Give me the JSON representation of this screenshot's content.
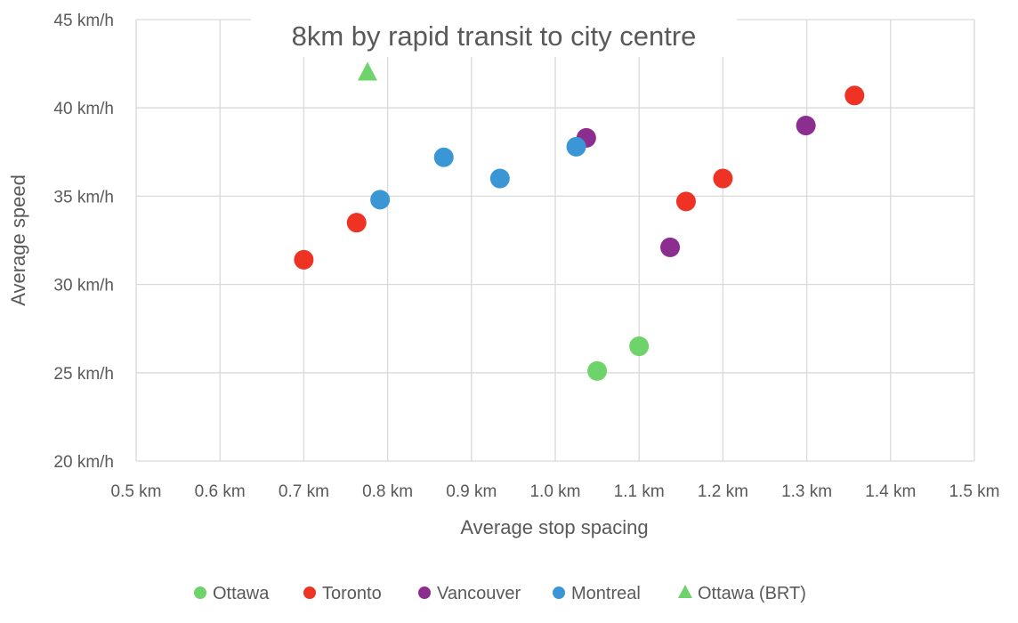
{
  "chart_data": {
    "type": "scatter",
    "title": "8km by rapid transit to city centre",
    "xlabel": "Average stop spacing",
    "ylabel": "Average speed",
    "xlim": [
      0.5,
      1.5
    ],
    "ylim": [
      20,
      45
    ],
    "x_ticks": [
      "0.5 km",
      "0.6 km",
      "0.7 km",
      "0.8 km",
      "0.9 km",
      "1.0 km",
      "1.1 km",
      "1.2 km",
      "1.3 km",
      "1.4 km",
      "1.5 km"
    ],
    "y_ticks": [
      "20 km/h",
      "25 km/h",
      "30 km/h",
      "35 km/h",
      "40 km/h",
      "45 km/h"
    ],
    "grid": true,
    "legend_position": "bottom",
    "series": [
      {
        "name": "Ottawa",
        "color": "#6dd36a",
        "marker": "circle",
        "points": [
          [
            1.05,
            25.1
          ],
          [
            1.1,
            26.5
          ]
        ]
      },
      {
        "name": "Toronto",
        "color": "#ee3224",
        "marker": "circle",
        "points": [
          [
            0.7,
            31.4
          ],
          [
            0.763,
            33.5
          ],
          [
            1.156,
            34.7
          ],
          [
            1.2,
            36.0
          ],
          [
            1.357,
            40.7
          ]
        ]
      },
      {
        "name": "Vancouver",
        "color": "#8b2e8f",
        "marker": "circle",
        "points": [
          [
            1.037,
            38.3
          ],
          [
            1.137,
            32.1
          ],
          [
            1.299,
            39.0
          ]
        ]
      },
      {
        "name": "Montreal",
        "color": "#3a96d4",
        "marker": "circle",
        "points": [
          [
            0.791,
            34.8
          ],
          [
            0.867,
            37.2
          ],
          [
            0.934,
            36.0
          ],
          [
            1.025,
            37.8
          ]
        ]
      },
      {
        "name": "Ottawa (BRT)",
        "color": "#6dd36a",
        "marker": "triangle",
        "points": [
          [
            0.776,
            42.0
          ]
        ]
      }
    ]
  }
}
